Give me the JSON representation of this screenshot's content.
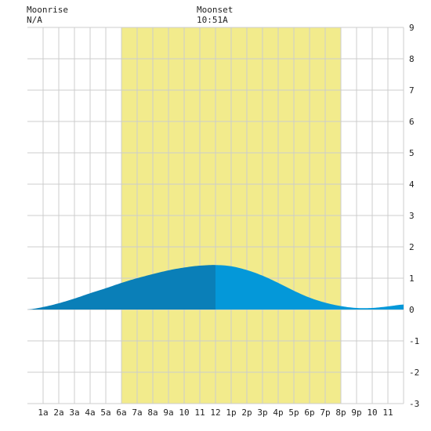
{
  "moonrise": {
    "label": "Moonrise",
    "time": "N/A"
  },
  "moonset": {
    "label": "Moonset",
    "time": "10:51A"
  },
  "chart_data": {
    "type": "area",
    "x_unit": "hour",
    "xlim": [
      0,
      24
    ],
    "ylim": [
      -3,
      9
    ],
    "y_ticks": [
      "-3",
      "-2",
      "-1",
      "0",
      "1",
      "2",
      "3",
      "4",
      "5",
      "6",
      "7",
      "8",
      "9"
    ],
    "x_ticks": [
      {
        "hour": 1,
        "label": "1a"
      },
      {
        "hour": 2,
        "label": "2a"
      },
      {
        "hour": 3,
        "label": "3a"
      },
      {
        "hour": 4,
        "label": "4a"
      },
      {
        "hour": 5,
        "label": "5a"
      },
      {
        "hour": 6,
        "label": "6a"
      },
      {
        "hour": 7,
        "label": "7a"
      },
      {
        "hour": 8,
        "label": "8a"
      },
      {
        "hour": 9,
        "label": "9a"
      },
      {
        "hour": 10,
        "label": "10"
      },
      {
        "hour": 11,
        "label": "11"
      },
      {
        "hour": 12,
        "label": "12"
      },
      {
        "hour": 13,
        "label": "1p"
      },
      {
        "hour": 14,
        "label": "2p"
      },
      {
        "hour": 15,
        "label": "3p"
      },
      {
        "hour": 16,
        "label": "4p"
      },
      {
        "hour": 17,
        "label": "5p"
      },
      {
        "hour": 18,
        "label": "6p"
      },
      {
        "hour": 19,
        "label": "7p"
      },
      {
        "hour": 20,
        "label": "8p"
      },
      {
        "hour": 21,
        "label": "9p"
      },
      {
        "hour": 22,
        "label": "10"
      },
      {
        "hour": 23,
        "label": "11"
      }
    ],
    "daylight": {
      "start_hour": 6,
      "end_hour": 20
    },
    "split_hour": 12,
    "tide": [
      {
        "x": 0,
        "y": 0.0
      },
      {
        "x": 1,
        "y": 0.08
      },
      {
        "x": 2,
        "y": 0.2
      },
      {
        "x": 3,
        "y": 0.35
      },
      {
        "x": 4,
        "y": 0.52
      },
      {
        "x": 5,
        "y": 0.68
      },
      {
        "x": 6,
        "y": 0.85
      },
      {
        "x": 7,
        "y": 1.0
      },
      {
        "x": 8,
        "y": 1.13
      },
      {
        "x": 9,
        "y": 1.25
      },
      {
        "x": 10,
        "y": 1.34
      },
      {
        "x": 11,
        "y": 1.4
      },
      {
        "x": 12,
        "y": 1.42
      },
      {
        "x": 13,
        "y": 1.38
      },
      {
        "x": 14,
        "y": 1.26
      },
      {
        "x": 15,
        "y": 1.08
      },
      {
        "x": 16,
        "y": 0.85
      },
      {
        "x": 17,
        "y": 0.6
      },
      {
        "x": 18,
        "y": 0.38
      },
      {
        "x": 19,
        "y": 0.22
      },
      {
        "x": 20,
        "y": 0.11
      },
      {
        "x": 21,
        "y": 0.05
      },
      {
        "x": 22,
        "y": 0.05
      },
      {
        "x": 23,
        "y": 0.1
      },
      {
        "x": 24,
        "y": 0.16
      }
    ],
    "colors": {
      "daylight": "#f2eb8c",
      "grid": "#cccccc",
      "tide_before": "#0a7fb8",
      "tide_after": "#0498d9",
      "axis_text": "#222222"
    }
  }
}
